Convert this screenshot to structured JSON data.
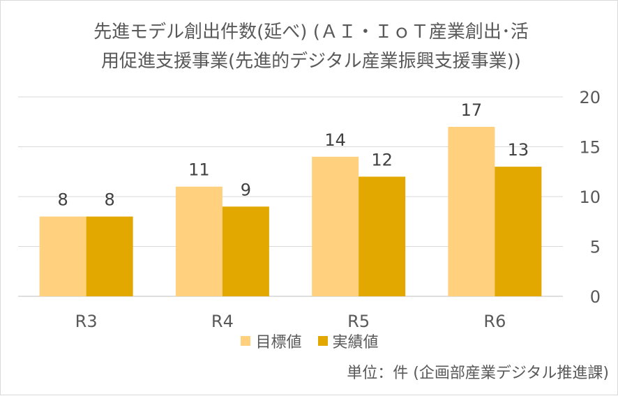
{
  "chart_data": {
    "type": "bar",
    "title": "先進モデル創出件数(延べ) (ＡＩ・ＩｏＴ産業創出･活用促進支援事業(先進的デジタル産業振興支援事業))",
    "title_lines": [
      "先進モデル創出件数(延べ) (ＡＩ・ＩｏＴ産業創出･活",
      "用促進支援事業(先進的デジタル産業振興支援事業))"
    ],
    "categories": [
      "R3",
      "R4",
      "R5",
      "R6"
    ],
    "series": [
      {
        "name": "目標値",
        "values": [
          8,
          11,
          14,
          17
        ],
        "color": "#FFD07E"
      },
      {
        "name": "実績値",
        "values": [
          8,
          9,
          12,
          13
        ],
        "color": "#E2A800"
      }
    ],
    "ylim": [
      0,
      20
    ],
    "yticks": [
      0,
      5,
      10,
      15,
      20
    ],
    "y_axis_side": "right",
    "grid": true,
    "legend_position": "bottom",
    "note": "単位：件 (企画部産業デジタル推進課)"
  }
}
